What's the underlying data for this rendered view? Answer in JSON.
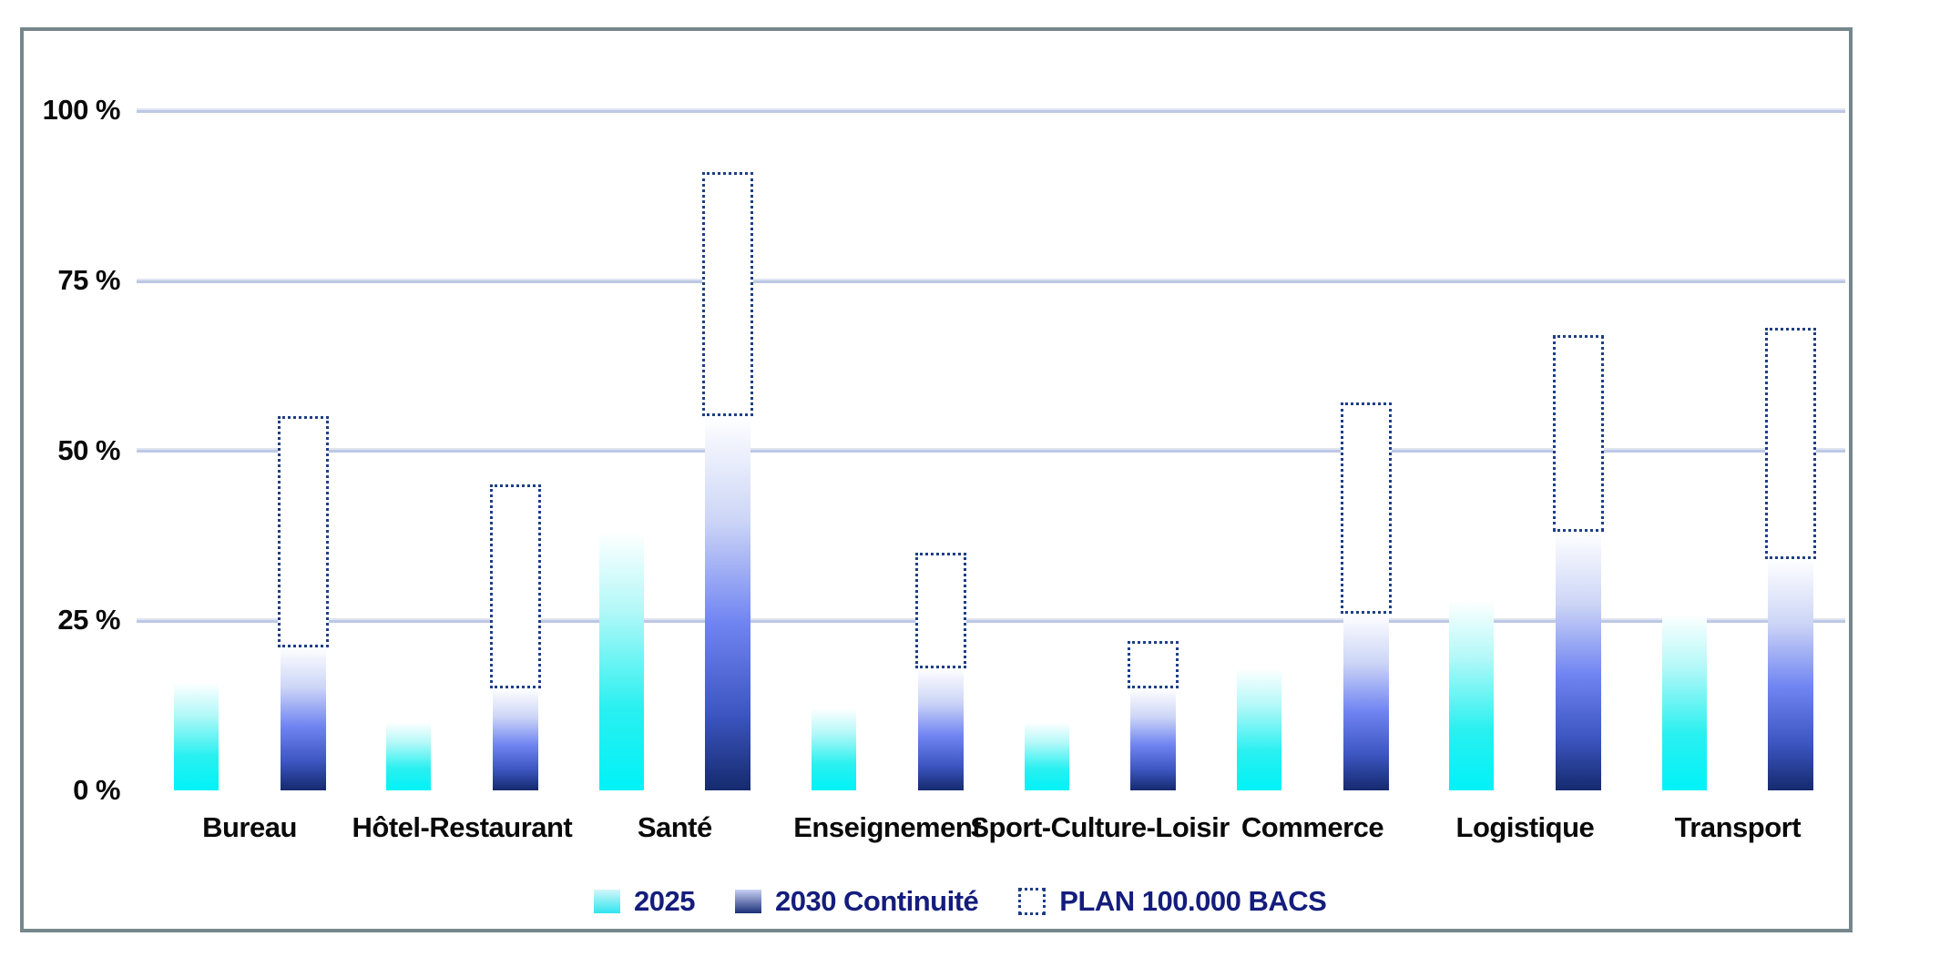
{
  "chart_data": {
    "type": "bar",
    "title": "",
    "categories": [
      "Bureau",
      "Hôtel-Restaurant",
      "Santé",
      "Enseignement",
      "Sport-Culture-Loisir",
      "Commerce",
      "Logistique",
      "Transport"
    ],
    "series": [
      {
        "name": "2025",
        "style": "gradient-cyan",
        "values": [
          16,
          10,
          38,
          12,
          10,
          18,
          28,
          26
        ]
      },
      {
        "name": "2030 Continuité",
        "style": "gradient-blue",
        "values": [
          21,
          15,
          55,
          18,
          15,
          26,
          38,
          34
        ]
      },
      {
        "name": "PLAN 100.000 BACS",
        "style": "dotted-outline-stacked-on-2030",
        "values": [
          55,
          45,
          91,
          35,
          22,
          57,
          67,
          68
        ]
      }
    ],
    "ylabel": "",
    "ylim": [
      0,
      100
    ],
    "ytick_values": [
      0,
      25,
      50,
      75,
      100
    ],
    "ytick_labels": [
      "0 %",
      "25 %",
      "50 %",
      "75 %",
      "100 %"
    ],
    "grid": true,
    "legend_position": "bottom"
  },
  "colors": {
    "frame-border": "#76878b",
    "grid": "#bdc8e4",
    "grid-light": "#dfe4f2",
    "navy": "#141d7c",
    "dotted": "#1d3f85",
    "cyan-hi": "#b4f8f8",
    "cyan-mid": "#2af0f0",
    "cyan-lo": "#00f2f8",
    "blue-hi": "#ccd5f6",
    "blue-mid": "#7185f2",
    "blue-deep": "#3c55c0",
    "blue-lo": "#152a6e",
    "legend-cyan-top": "#d2f7fa",
    "legend-cyan-bot": "#2ee4ef",
    "legend-blue-top": "#c7d0f4",
    "legend-blue-bot": "#1b2f77"
  }
}
